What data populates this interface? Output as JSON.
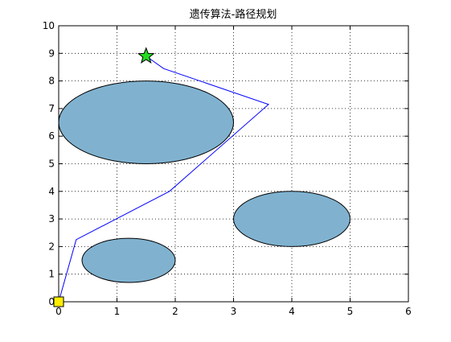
{
  "chart_data": {
    "type": "line",
    "title": "遗传算法-路径规划",
    "xlabel": "",
    "ylabel": "",
    "xlim": [
      0,
      6
    ],
    "ylim": [
      0,
      10
    ],
    "xticks": [
      "0",
      "1",
      "2",
      "3",
      "4",
      "5",
      "6"
    ],
    "yticks": [
      "0",
      "1",
      "2",
      "3",
      "4",
      "5",
      "6",
      "7",
      "8",
      "9",
      "10"
    ],
    "grid": true,
    "grid_style": "dotted",
    "obstacles": [
      {
        "type": "ellipse",
        "cx": 1.5,
        "cy": 6.5,
        "rx": 1.5,
        "ry": 1.5
      },
      {
        "type": "ellipse",
        "cx": 4.0,
        "cy": 3.0,
        "rx": 1.0,
        "ry": 1.0
      },
      {
        "type": "ellipse",
        "cx": 1.2,
        "cy": 1.5,
        "rx": 0.8,
        "ry": 0.8
      }
    ],
    "obstacle_color": "#80b2d0",
    "path": {
      "color": "#0000ff",
      "x": [
        0.0,
        0.3,
        1.9,
        3.6,
        1.8,
        1.5
      ],
      "y": [
        0.0,
        2.25,
        4.0,
        7.15,
        8.45,
        8.9
      ]
    },
    "start": {
      "x": 0.0,
      "y": 0.0,
      "marker": "square",
      "color": "#ffee00"
    },
    "goal": {
      "x": 1.5,
      "y": 8.9,
      "marker": "star",
      "color": "#22dd22"
    }
  }
}
